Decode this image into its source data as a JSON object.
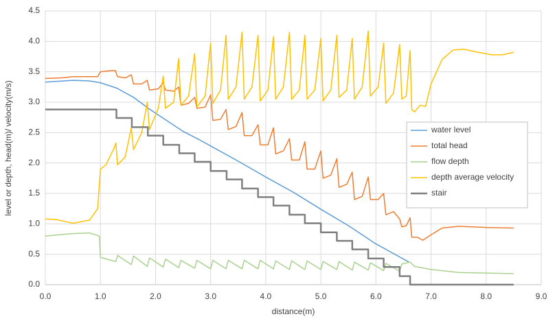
{
  "chart_data": {
    "type": "line",
    "xlabel": "distance(m)",
    "ylabel": "level or depth, head(m)/ velocity(m/s)",
    "xlim": [
      0,
      9
    ],
    "ylim": [
      0,
      4.5
    ],
    "xticks": [
      {
        "value": 0,
        "label": "0.0"
      },
      {
        "value": 1,
        "label": "1.0"
      },
      {
        "value": 2,
        "label": "2.0"
      },
      {
        "value": 3,
        "label": "3.0"
      },
      {
        "value": 4,
        "label": "4.0"
      },
      {
        "value": 5,
        "label": "5.0"
      },
      {
        "value": 6,
        "label": "6.0"
      },
      {
        "value": 7,
        "label": "7.0"
      },
      {
        "value": 8,
        "label": "8.0"
      },
      {
        "value": 9,
        "label": "9.0"
      }
    ],
    "yticks": [
      {
        "value": 0,
        "label": "0.0"
      },
      0.5,
      {
        "value": 1,
        "label": "1.0"
      },
      1.5,
      {
        "value": 2,
        "label": "2.0"
      },
      2.5,
      {
        "value": 3,
        "label": "3.0"
      },
      3.5,
      {
        "value": 4,
        "label": "4.0"
      },
      4.5
    ],
    "grid": true,
    "legend": "right",
    "series": [
      {
        "name": "water level",
        "color": "#5b9bd5",
        "width": 1.5,
        "x": [
          0,
          0.5,
          0.8,
          1.0,
          1.3,
          1.6,
          1.9,
          2.2,
          2.5,
          2.8,
          3.0,
          3.5,
          4.0,
          4.5,
          5.0,
          5.5,
          6.0,
          6.3,
          6.6
        ],
        "values": [
          3.33,
          3.36,
          3.35,
          3.32,
          3.23,
          3.08,
          2.88,
          2.7,
          2.52,
          2.38,
          2.28,
          2.03,
          1.77,
          1.52,
          1.24,
          0.97,
          0.67,
          0.52,
          0.37
        ]
      },
      {
        "name": "total head",
        "color": "#ed7d31",
        "width": 1.5,
        "x": [
          0,
          0.3,
          0.5,
          0.95,
          1.0,
          1.2,
          1.27,
          1.31,
          1.45,
          1.56,
          1.6,
          1.75,
          1.85,
          1.89,
          2.05,
          2.14,
          2.18,
          2.33,
          2.42,
          2.46,
          2.6,
          2.71,
          2.75,
          2.9,
          3.0,
          3.04,
          3.18,
          3.28,
          3.32,
          3.46,
          3.57,
          3.61,
          3.75,
          3.86,
          3.9,
          4.04,
          4.14,
          4.18,
          4.32,
          4.43,
          4.47,
          4.61,
          4.71,
          4.75,
          4.89,
          5.0,
          5.04,
          5.18,
          5.29,
          5.33,
          5.47,
          5.57,
          5.61,
          5.75,
          5.86,
          5.9,
          6.04,
          6.14,
          6.18,
          6.32,
          6.43,
          6.47,
          6.55,
          6.62,
          6.65,
          6.75,
          6.85,
          7.0,
          7.2,
          7.5,
          8.0,
          8.5
        ],
        "values": [
          3.39,
          3.4,
          3.42,
          3.42,
          3.5,
          3.52,
          3.52,
          3.42,
          3.4,
          3.45,
          3.3,
          3.3,
          3.36,
          3.2,
          3.22,
          3.32,
          3.2,
          3.18,
          3.25,
          2.95,
          2.98,
          3.08,
          2.9,
          2.92,
          3.12,
          2.7,
          2.72,
          2.88,
          2.55,
          2.6,
          2.83,
          2.45,
          2.45,
          2.63,
          2.3,
          2.3,
          2.58,
          2.15,
          2.2,
          2.4,
          2.05,
          2.05,
          2.35,
          1.9,
          1.9,
          2.2,
          1.75,
          1.8,
          2.07,
          1.6,
          1.65,
          1.85,
          1.4,
          1.45,
          1.77,
          1.4,
          1.4,
          1.5,
          1.15,
          1.2,
          1.08,
          0.95,
          0.97,
          1.1,
          0.78,
          0.78,
          0.73,
          0.82,
          0.93,
          0.96,
          0.94,
          0.93
        ]
      },
      {
        "name": "flow depth",
        "color": "#a9d18e",
        "width": 1.5,
        "x": [
          0,
          0.5,
          0.8,
          0.98,
          1.0,
          1.15,
          1.28,
          1.31,
          1.56,
          1.6,
          1.85,
          1.89,
          2.14,
          2.18,
          2.42,
          2.46,
          2.71,
          2.75,
          3.0,
          3.04,
          3.28,
          3.32,
          3.57,
          3.61,
          3.86,
          3.9,
          4.14,
          4.18,
          4.43,
          4.47,
          4.71,
          4.75,
          5.0,
          5.04,
          5.29,
          5.33,
          5.57,
          5.61,
          5.86,
          5.9,
          6.14,
          6.18,
          6.43,
          6.47,
          6.62,
          6.7,
          7.0,
          7.5,
          8.0,
          8.5
        ],
        "values": [
          0.8,
          0.84,
          0.85,
          0.8,
          0.45,
          0.41,
          0.38,
          0.48,
          0.33,
          0.47,
          0.3,
          0.44,
          0.29,
          0.42,
          0.28,
          0.4,
          0.27,
          0.4,
          0.26,
          0.4,
          0.26,
          0.4,
          0.26,
          0.4,
          0.26,
          0.4,
          0.26,
          0.39,
          0.25,
          0.39,
          0.25,
          0.39,
          0.25,
          0.38,
          0.25,
          0.38,
          0.24,
          0.37,
          0.24,
          0.36,
          0.23,
          0.35,
          0.22,
          0.34,
          0.37,
          0.3,
          0.25,
          0.2,
          0.19,
          0.18
        ]
      },
      {
        "name": "depth average velocity",
        "color": "#ffc000",
        "width": 1.5,
        "x": [
          0,
          0.2,
          0.5,
          0.8,
          0.95,
          1.0,
          1.1,
          1.25,
          1.28,
          1.31,
          1.45,
          1.56,
          1.6,
          1.75,
          1.85,
          1.89,
          2.05,
          2.14,
          2.18,
          2.33,
          2.42,
          2.46,
          2.6,
          2.71,
          2.75,
          2.9,
          3.0,
          3.04,
          3.18,
          3.28,
          3.32,
          3.46,
          3.57,
          3.61,
          3.75,
          3.86,
          3.9,
          4.04,
          4.14,
          4.18,
          4.32,
          4.43,
          4.47,
          4.61,
          4.71,
          4.75,
          4.89,
          5.0,
          5.04,
          5.18,
          5.29,
          5.33,
          5.47,
          5.57,
          5.61,
          5.75,
          5.86,
          5.9,
          6.04,
          6.14,
          6.18,
          6.32,
          6.43,
          6.47,
          6.55,
          6.62,
          6.65,
          6.7,
          6.8,
          6.9,
          7.0,
          7.2,
          7.4,
          7.6,
          7.8,
          8.1,
          8.3,
          8.5
        ],
        "values": [
          1.08,
          1.07,
          1.01,
          1.06,
          1.25,
          1.9,
          1.97,
          2.25,
          2.33,
          1.97,
          2.1,
          2.58,
          2.22,
          2.5,
          3.0,
          2.55,
          2.9,
          3.43,
          2.9,
          3.0,
          3.72,
          2.95,
          3.1,
          3.8,
          2.92,
          3.1,
          3.97,
          2.98,
          3.2,
          4.1,
          3.05,
          3.25,
          4.15,
          3.05,
          3.25,
          4.1,
          3.02,
          3.2,
          4.08,
          3.05,
          3.25,
          4.15,
          3.05,
          3.2,
          4.1,
          3.05,
          3.2,
          4.05,
          3.02,
          3.2,
          4.1,
          3.08,
          3.2,
          4.05,
          3.05,
          3.25,
          4.17,
          3.1,
          3.25,
          3.97,
          2.98,
          3.15,
          3.95,
          3.05,
          3.1,
          3.85,
          2.88,
          2.84,
          2.95,
          2.93,
          3.3,
          3.7,
          3.86,
          3.87,
          3.83,
          3.78,
          3.78,
          3.82
        ]
      },
      {
        "name": "stair",
        "color": "#7f7f7f",
        "width": 2.5,
        "x": [
          0,
          1.29,
          1.29,
          1.57,
          1.57,
          1.86,
          1.86,
          2.14,
          2.14,
          2.43,
          2.43,
          2.71,
          2.71,
          3.0,
          3.0,
          3.29,
          3.29,
          3.57,
          3.57,
          3.86,
          3.86,
          4.14,
          4.14,
          4.43,
          4.43,
          4.71,
          4.71,
          5.0,
          5.0,
          5.29,
          5.29,
          5.57,
          5.57,
          5.86,
          5.86,
          6.14,
          6.14,
          6.43,
          6.43,
          6.62,
          6.62,
          8.5
        ],
        "values": [
          2.88,
          2.88,
          2.74,
          2.74,
          2.59,
          2.59,
          2.45,
          2.45,
          2.3,
          2.3,
          2.16,
          2.16,
          2.02,
          2.02,
          1.87,
          1.87,
          1.73,
          1.73,
          1.58,
          1.58,
          1.44,
          1.44,
          1.3,
          1.3,
          1.15,
          1.15,
          1.01,
          1.01,
          0.86,
          0.86,
          0.72,
          0.72,
          0.58,
          0.58,
          0.43,
          0.43,
          0.29,
          0.29,
          0.14,
          0.14,
          0,
          0
        ]
      }
    ]
  }
}
